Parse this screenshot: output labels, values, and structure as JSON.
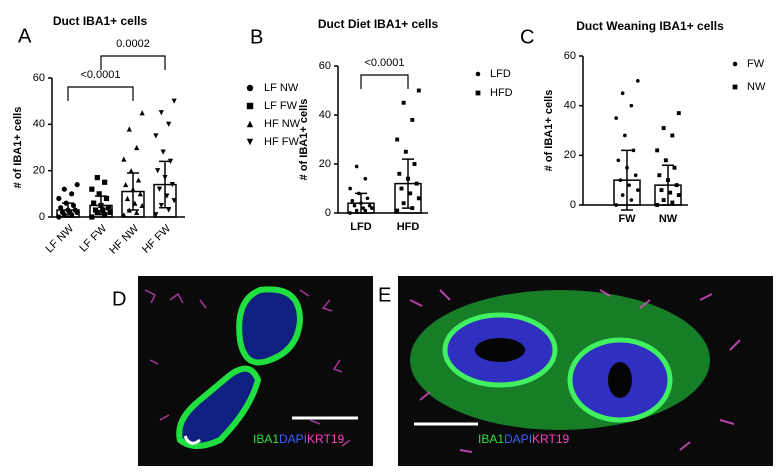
{
  "chart_data": [
    {
      "type": "bar",
      "letter": "A",
      "title": "Duct IBA1+ cells",
      "ylabel": "# of IBA1+ cells",
      "categories": [
        "LF NW",
        "LF FW",
        "HF NW",
        "HF FW"
      ],
      "values": [
        3,
        5,
        11,
        14
      ],
      "errors": [
        3,
        4,
        8,
        10
      ],
      "points": [
        [
          0,
          1,
          1,
          2,
          2,
          2,
          3,
          3,
          4,
          5,
          6,
          8,
          10,
          12,
          14
        ],
        [
          0,
          1,
          2,
          2,
          3,
          3,
          4,
          5,
          6,
          8,
          10,
          12,
          15,
          17
        ],
        [
          1,
          2,
          3,
          5,
          6,
          8,
          10,
          12,
          14,
          16,
          20,
          25,
          30,
          38,
          45
        ],
        [
          1,
          3,
          5,
          7,
          9,
          12,
          14,
          17,
          20,
          24,
          28,
          35,
          40,
          45,
          50
        ]
      ],
      "markers": [
        "circle",
        "square",
        "triangle-up",
        "triangle-down"
      ],
      "legend": [
        "LF NW",
        "LF FW",
        "HF NW",
        "HF FW"
      ],
      "brackets": [
        {
          "label": "<0.0001",
          "between": [
            0,
            2
          ]
        },
        {
          "label": "0.0002",
          "between": [
            1,
            3
          ]
        }
      ],
      "ylim": [
        0,
        60
      ],
      "yticks": [
        0,
        20,
        40,
        60
      ],
      "color": "#000000"
    },
    {
      "type": "bar",
      "letter": "B",
      "title": "Duct Diet IBA1+ cells",
      "ylabel": "# of IBA1+ cells",
      "categories": [
        "LFD",
        "HFD"
      ],
      "values": [
        4,
        12
      ],
      "errors": [
        4,
        10
      ],
      "points": [
        [
          0,
          1,
          1,
          2,
          2,
          3,
          3,
          4,
          5,
          6,
          8,
          10,
          14,
          19
        ],
        [
          1,
          2,
          4,
          6,
          8,
          10,
          12,
          14,
          16,
          20,
          25,
          30,
          38,
          45,
          50
        ]
      ],
      "markers": [
        "dot",
        "small-square"
      ],
      "legend": [
        "LFD",
        "HFD"
      ],
      "brackets": [
        {
          "label": "<0.0001",
          "between": [
            0,
            1
          ]
        }
      ],
      "ylim": [
        0,
        60
      ],
      "yticks": [
        0,
        20,
        40,
        60
      ],
      "color": "#000000"
    },
    {
      "type": "bar",
      "letter": "C",
      "title": "Duct Weaning IBA1+ cells",
      "ylabel": "# of IBA1+ cells",
      "categories": [
        "FW",
        "NW"
      ],
      "values": [
        10,
        8
      ],
      "errors": [
        12,
        8
      ],
      "points": [
        [
          0,
          2,
          4,
          6,
          8,
          10,
          12,
          15,
          18,
          22,
          28,
          35,
          40,
          45,
          50
        ],
        [
          0,
          1,
          2,
          4,
          5,
          6,
          8,
          10,
          12,
          15,
          18,
          22,
          28,
          31,
          37
        ]
      ],
      "markers": [
        "dot",
        "small-square"
      ],
      "legend": [
        "FW",
        "NW"
      ],
      "brackets": [],
      "ylim": [
        0,
        60
      ],
      "yticks": [
        0,
        20,
        40,
        60
      ],
      "color": "#000000"
    }
  ],
  "images": [
    {
      "letter": "D",
      "labels": [
        "IBA1",
        "DAPI",
        "KRT19"
      ]
    },
    {
      "letter": "E",
      "labels": [
        "IBA1",
        "DAPI",
        "KRT19"
      ]
    }
  ]
}
